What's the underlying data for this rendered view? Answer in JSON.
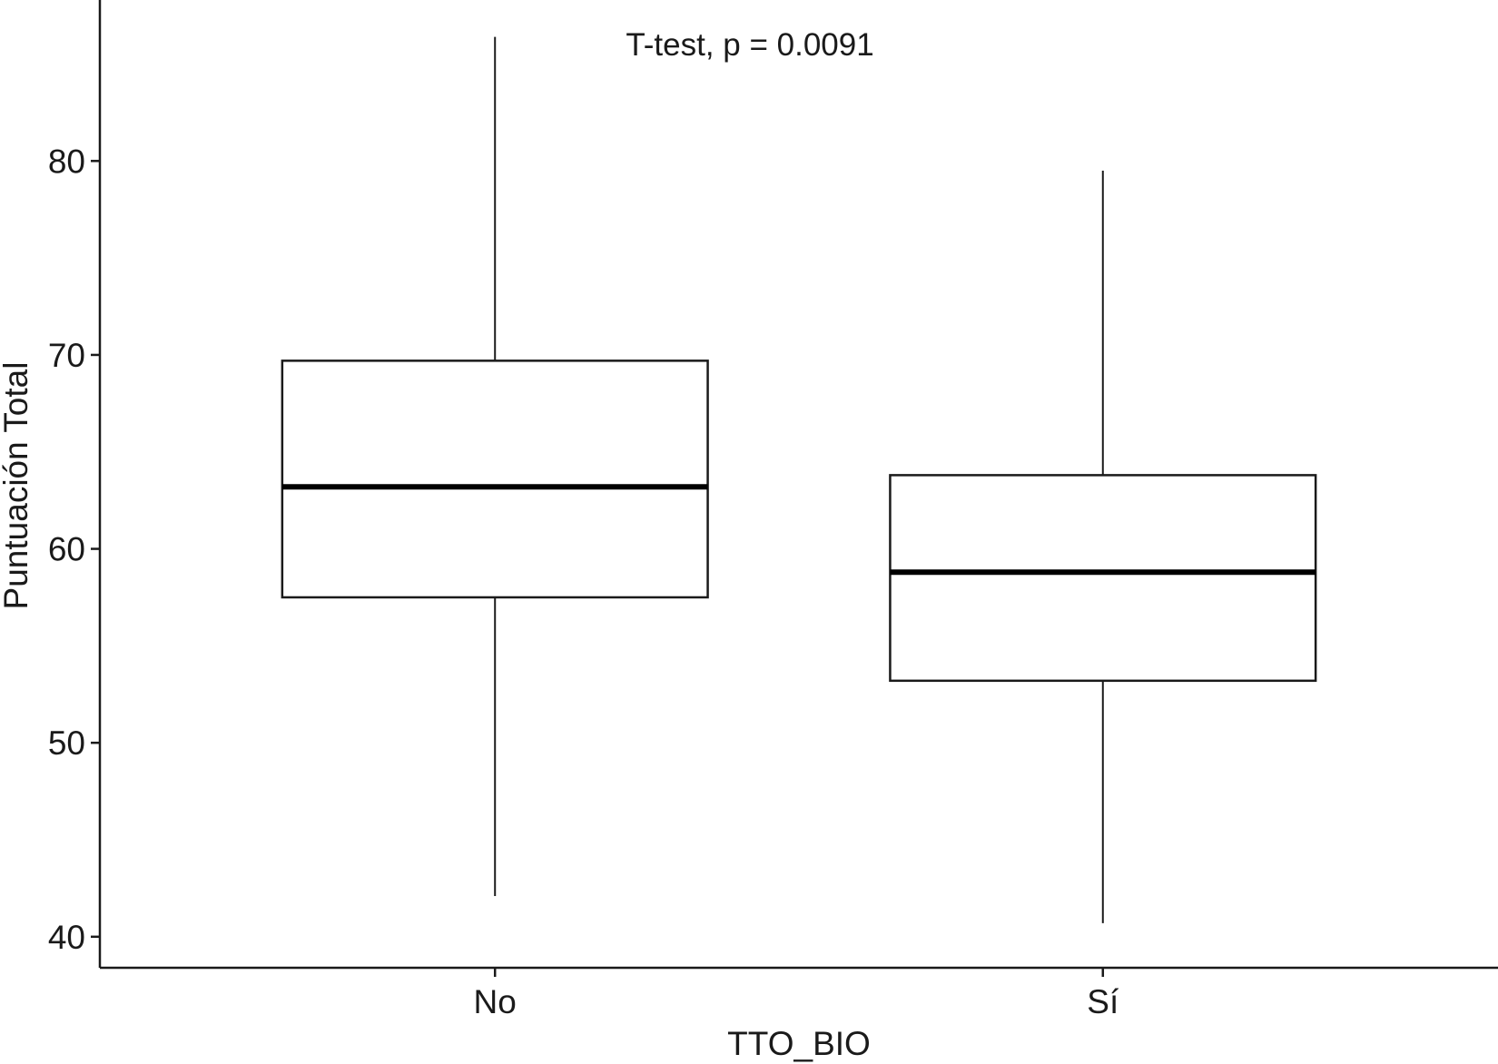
{
  "chart_data": {
    "type": "boxplot",
    "title": "",
    "annotation": "T-test, p = 0.0091",
    "xlabel": "TTO_BIO",
    "ylabel": "Puntuación Total",
    "categories": [
      "No",
      "Sí"
    ],
    "boxes": [
      {
        "category": "No",
        "min": 42.1,
        "q1": 57.5,
        "median": 63.2,
        "q3": 69.7,
        "max": 86.4
      },
      {
        "category": "Sí",
        "min": 40.7,
        "q1": 53.2,
        "median": 58.8,
        "q3": 63.8,
        "max": 79.5
      }
    ],
    "yticks": [
      40,
      50,
      60,
      70,
      80
    ],
    "ylim": [
      38.4,
      88.3
    ],
    "grid": false,
    "legend": "none"
  }
}
